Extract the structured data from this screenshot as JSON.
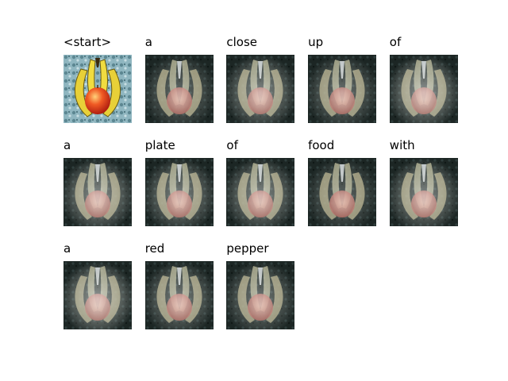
{
  "figure": {
    "words": [
      "<start>",
      "a",
      "close",
      "up",
      "of",
      "a",
      "plate",
      "of",
      "food",
      "with",
      "a",
      "red",
      "pepper"
    ],
    "images": [
      {
        "word_index": 0,
        "kind": "original-image"
      },
      {
        "word_index": 1,
        "kind": "attention-overlay"
      },
      {
        "word_index": 2,
        "kind": "attention-overlay"
      },
      {
        "word_index": 3,
        "kind": "attention-overlay"
      },
      {
        "word_index": 4,
        "kind": "attention-overlay"
      },
      {
        "word_index": 5,
        "kind": "attention-overlay"
      },
      {
        "word_index": 6,
        "kind": "attention-overlay"
      },
      {
        "word_index": 7,
        "kind": "attention-overlay"
      },
      {
        "word_index": 8,
        "kind": "attention-overlay"
      },
      {
        "word_index": 9,
        "kind": "attention-overlay"
      },
      {
        "word_index": 10,
        "kind": "attention-overlay"
      },
      {
        "word_index": 11,
        "kind": "attention-overlay"
      },
      {
        "word_index": 12,
        "kind": "attention-overlay"
      }
    ],
    "colors": {
      "background": "#ffffff",
      "banana": "#e8d038",
      "apple": "#e03a1e",
      "cloth": "#7fa8b4",
      "attention-dark": "#1c2624"
    }
  }
}
